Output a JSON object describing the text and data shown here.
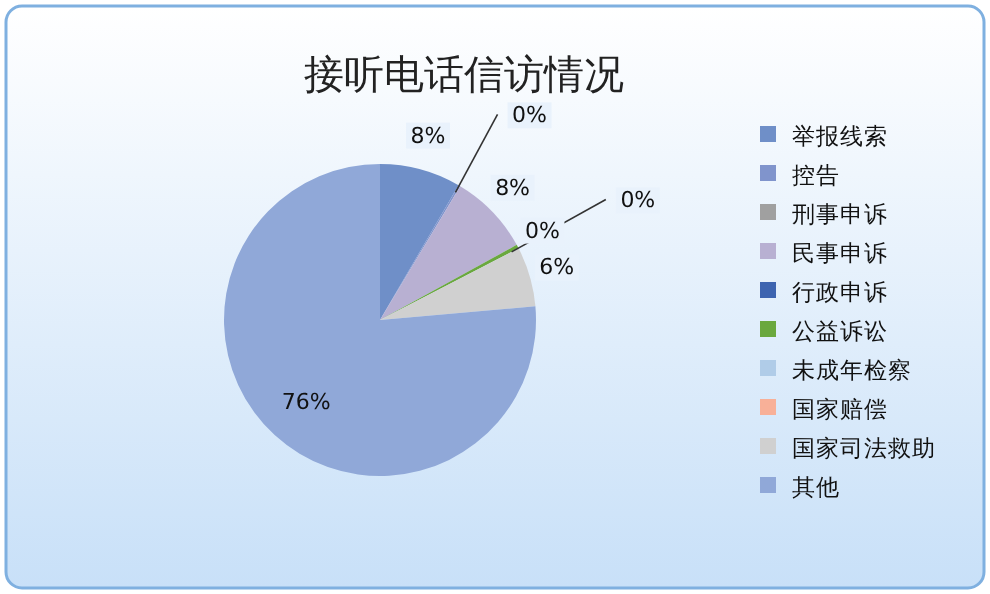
{
  "chart_data": {
    "type": "pie",
    "title": "接听电话信访情况",
    "categories": [
      "举报线索",
      "控告",
      "刑事申诉",
      "民事申诉",
      "行政申诉",
      "公益诉讼",
      "未成年检察",
      "国家赔偿",
      "国家司法救助",
      "其他"
    ],
    "values": [
      8.4,
      0.2,
      0,
      8.4,
      0,
      0.4,
      0,
      0,
      6.2,
      76.4
    ],
    "value_labels": [
      "8%",
      "0%",
      null,
      "8%",
      null,
      "0%",
      "0%",
      null,
      "6%",
      "76%"
    ],
    "colors": [
      "#6f8fc8",
      "#8094cc",
      "#a0a0a0",
      "#b8b0d2",
      "#3d64b0",
      "#6aa83e",
      "#b0cce8",
      "#f8b098",
      "#d0d0d0",
      "#90a8d8"
    ],
    "legend": "right"
  }
}
